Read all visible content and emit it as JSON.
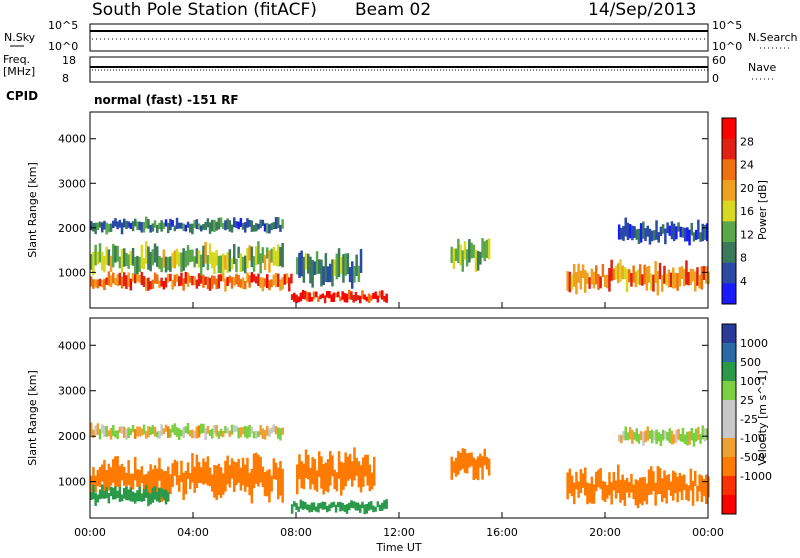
{
  "header": {
    "station": "South Pole Station (fitACF)",
    "beam": "Beam 02",
    "date": "14/Sep/2013"
  },
  "top_panels": {
    "nsky_label": "N.Sky",
    "nsky_ticks": [
      "10^5",
      "10^0"
    ],
    "nsearch_label": "N.Search",
    "nsearch_ticks": [
      "10^5",
      "10^0"
    ],
    "freq_label_1": "Freq.",
    "freq_label_2": "[MHz]",
    "freq_ticks": [
      "18",
      "8"
    ],
    "nave_label": "Nave",
    "nave_ticks": [
      "60",
      "0"
    ],
    "cpid_label": "CPID",
    "cpid_value": "normal (fast) -151 RF"
  },
  "colors": {
    "power_scale": [
      "#1a1aff",
      "#2a4aa8",
      "#3a7a5a",
      "#5aa84a",
      "#d8d820",
      "#f0a020",
      "#f07010",
      "#e02010",
      "#ff0000"
    ],
    "velocity_scale": [
      "#ff0000",
      "#ff3000",
      "#ff7a00",
      "#f0a030",
      "#c8c8c8",
      "#c8c8c8",
      "#7ad040",
      "#2a9a4a",
      "#2a6aa8",
      "#2a3a9a"
    ]
  },
  "chart_data": [
    {
      "type": "heatmap",
      "panel": "power",
      "ylabel": "Slant Range [km]",
      "ylim": [
        200,
        4600
      ],
      "yticks": [
        "1000",
        "2000",
        "3000",
        "4000"
      ],
      "xlim": [
        "00:00",
        "24:00"
      ],
      "colorbar_label": "Power [dB]",
      "colorbar_ticks": [
        "4",
        "8",
        "12",
        "16",
        "20",
        "24",
        "28"
      ],
      "colorbar_range": [
        0,
        32
      ],
      "bands": [
        {
          "x_start": 0,
          "x_end": 7.5,
          "range_center": 2050,
          "range_width": 250,
          "value": 8
        },
        {
          "x_start": 0,
          "x_end": 7.5,
          "range_center": 1300,
          "range_width": 500,
          "value": 14
        },
        {
          "x_start": 0,
          "x_end": 7.8,
          "range_center": 800,
          "range_width": 300,
          "value": 24
        },
        {
          "x_start": 7.8,
          "x_end": 11.5,
          "range_center": 450,
          "range_width": 200,
          "value": 28
        },
        {
          "x_start": 8,
          "x_end": 10.5,
          "range_center": 1100,
          "range_width": 600,
          "value": 10
        },
        {
          "x_start": 14,
          "x_end": 15.5,
          "range_center": 1400,
          "range_width": 500,
          "value": 12
        },
        {
          "x_start": 18.5,
          "x_end": 24,
          "range_center": 900,
          "range_width": 500,
          "value": 22
        },
        {
          "x_start": 20.5,
          "x_end": 24,
          "range_center": 1900,
          "range_width": 400,
          "value": 6
        }
      ]
    },
    {
      "type": "heatmap",
      "panel": "velocity",
      "ylabel": "Slant Range [km]",
      "ylim": [
        200,
        4600
      ],
      "yticks": [
        "1000",
        "2000",
        "3000",
        "4000"
      ],
      "xlabel": "Time UT",
      "xticks": [
        "00:00",
        "04:00",
        "08:00",
        "12:00",
        "16:00",
        "20:00",
        "00:00"
      ],
      "colorbar_label": "Velocity  [m s^-1]",
      "colorbar_ticks": [
        "1000",
        "500",
        "100",
        "25",
        "-25",
        "-100",
        "-500",
        "-1000"
      ],
      "bands": [
        {
          "x_start": 0,
          "x_end": 7.5,
          "range_center": 2100,
          "range_width": 250,
          "value": -10
        },
        {
          "x_start": 0,
          "x_end": 7.5,
          "range_center": 1100,
          "range_width": 700,
          "value": -300
        },
        {
          "x_start": 0,
          "x_end": 3,
          "range_center": 700,
          "range_width": 300,
          "value": 200
        },
        {
          "x_start": 7.8,
          "x_end": 11.5,
          "range_center": 450,
          "range_width": 200,
          "value": 200
        },
        {
          "x_start": 8,
          "x_end": 11,
          "range_center": 1200,
          "range_width": 700,
          "value": -300
        },
        {
          "x_start": 14,
          "x_end": 15.5,
          "range_center": 1400,
          "range_width": 500,
          "value": -400
        },
        {
          "x_start": 18.5,
          "x_end": 24,
          "range_center": 900,
          "range_width": 600,
          "value": -300
        },
        {
          "x_start": 20.5,
          "x_end": 24,
          "range_center": 2000,
          "range_width": 300,
          "value": 0
        }
      ]
    }
  ]
}
